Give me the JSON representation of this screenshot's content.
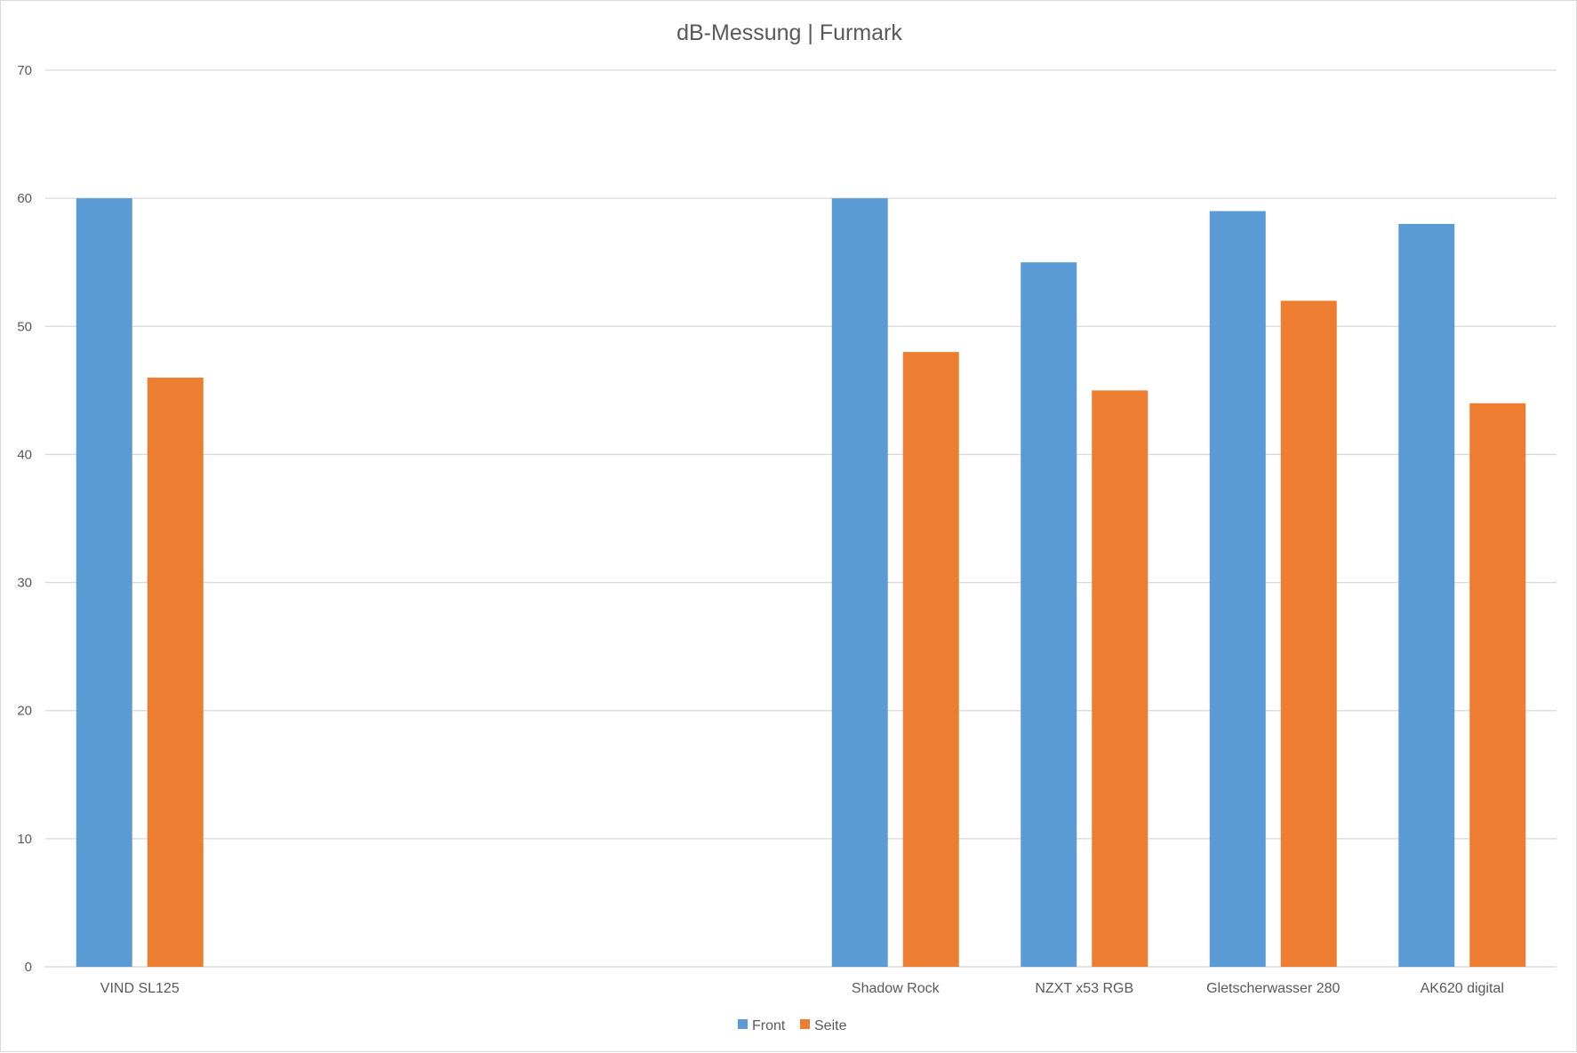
{
  "chart_data": {
    "type": "bar",
    "title": "dB-Messung | Furmark",
    "xlabel": "",
    "ylabel": "",
    "ylim": [
      0,
      70
    ],
    "yticks": [
      0,
      10,
      20,
      30,
      40,
      50,
      60,
      70
    ],
    "categories": [
      "VIND SL125",
      "",
      "",
      "",
      "Shadow Rock",
      "NZXT x53 RGB",
      "Gletscherwasser 280",
      "AK620 digital"
    ],
    "series": [
      {
        "name": "Front",
        "color": "#5b9bd5",
        "values": [
          60,
          null,
          null,
          null,
          60,
          55,
          59,
          58
        ]
      },
      {
        "name": "Seite",
        "color": "#ed7d31",
        "values": [
          46,
          null,
          null,
          null,
          48,
          45,
          52,
          44
        ]
      }
    ],
    "grid": true,
    "gridline_color": "#d9d9d9",
    "legend_position": "bottom"
  }
}
